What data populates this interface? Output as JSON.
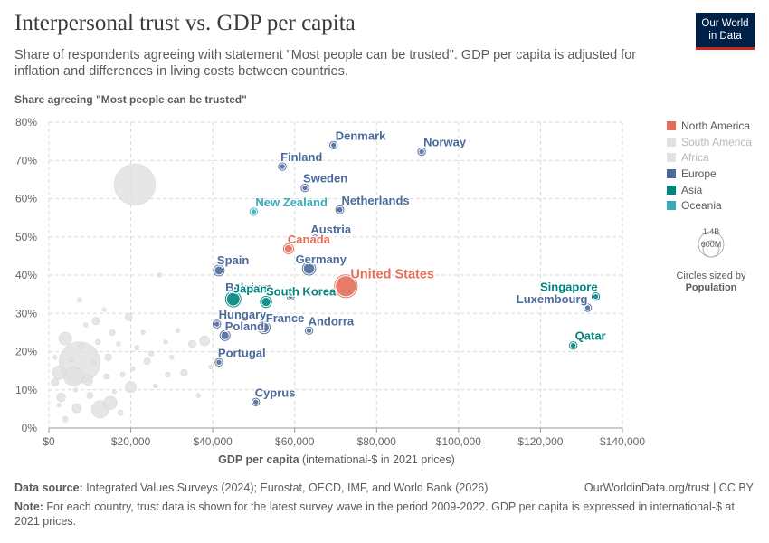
{
  "header": {
    "title": "Interpersonal trust vs. GDP per capita",
    "subtitle": "Share of respondents agreeing with statement \"Most people can be trusted\". GDP per capita is adjusted for inflation and differences in living costs between countries.",
    "logo_line1": "Our World",
    "logo_line2": "in Data"
  },
  "legend": {
    "items": [
      {
        "label": "North America",
        "color": "#e56e5a",
        "faded": false
      },
      {
        "label": "South America",
        "color": "#e2e2e2",
        "faded": true
      },
      {
        "label": "Africa",
        "color": "#e2e2e2",
        "faded": true
      },
      {
        "label": "Europe",
        "color": "#4c6a9c",
        "faded": false
      },
      {
        "label": "Asia",
        "color": "#00847e",
        "faded": false
      },
      {
        "label": "Oceania",
        "color": "#38aaba",
        "faded": false
      }
    ],
    "size_big": "1.4B",
    "size_small": "600M",
    "size_title": "Circles sized by",
    "size_variable": "Population"
  },
  "footer": {
    "source_label": "Data source:",
    "source_text": " Integrated Values Surveys (2024); Eurostat, OECD, IMF, and World Bank (2026)",
    "url": "OurWorldinData.org/trust | CC BY",
    "note_label": "Note:",
    "note_text": " For each country, trust data is shown for the latest survey wave in the period 2009-2022. GDP per capita is expressed in international-$ at 2021 prices."
  },
  "chart_data": {
    "type": "scatter",
    "title": "Interpersonal trust vs. GDP per capita",
    "xlabel": "GDP per capita",
    "xlabel_unit": " (international-$ in 2021 prices)",
    "ylabel": "Share agreeing \"Most people can be trusted\"",
    "xlim": [
      0,
      140000
    ],
    "ylim": [
      0,
      80
    ],
    "x_ticks": [
      0,
      20000,
      40000,
      60000,
      80000,
      100000,
      120000,
      140000
    ],
    "x_tick_labels": [
      "$0",
      "$20,000",
      "$40,000",
      "$60,000",
      "$80,000",
      "$100,000",
      "$120,000",
      "$140,000"
    ],
    "y_ticks": [
      0,
      10,
      20,
      30,
      40,
      50,
      60,
      70,
      80
    ],
    "y_tick_labels": [
      "0%",
      "10%",
      "20%",
      "30%",
      "40%",
      "50%",
      "60%",
      "70%",
      "80%"
    ],
    "grid": true,
    "region_colors": {
      "North America": "#e56e5a",
      "Europe": "#4c6a9c",
      "Asia": "#00847e",
      "Oceania": "#38aaba",
      "Other": "#e2e2e2"
    },
    "labeled_points": [
      {
        "label": "Denmark",
        "x": 69500,
        "y": 74,
        "pop": 6,
        "region": "Europe"
      },
      {
        "label": "Norway",
        "x": 91000,
        "y": 72.3,
        "pop": 5,
        "region": "Europe"
      },
      {
        "label": "Finland",
        "x": 57000,
        "y": 68.4,
        "pop": 6,
        "region": "Europe"
      },
      {
        "label": "Sweden",
        "x": 62500,
        "y": 62.8,
        "pop": 10,
        "region": "Europe"
      },
      {
        "label": "Netherlands",
        "x": 71000,
        "y": 57.1,
        "pop": 18,
        "region": "Europe"
      },
      {
        "label": "New Zealand",
        "x": 50000,
        "y": 56.6,
        "pop": 5,
        "region": "Oceania"
      },
      {
        "label": "Austria",
        "x": 65000,
        "y": 49.5,
        "pop": 9,
        "region": "Europe"
      },
      {
        "label": "Canada",
        "x": 58500,
        "y": 46.9,
        "pop": 38,
        "region": "North America"
      },
      {
        "label": "Germany",
        "x": 63500,
        "y": 41.7,
        "pop": 83,
        "region": "Europe"
      },
      {
        "label": "Spain",
        "x": 41500,
        "y": 41.2,
        "pop": 47,
        "region": "Europe"
      },
      {
        "label": "United States",
        "x": 72500,
        "y": 37.1,
        "pop": 333,
        "region": "North America"
      },
      {
        "label": "Belgium",
        "x": 59000,
        "y": 34.5,
        "pop": 12,
        "region": "Europe"
      },
      {
        "label": "Japan",
        "x": 45000,
        "y": 33.7,
        "pop": 125,
        "region": "Asia"
      },
      {
        "label": "South Korea",
        "x": 53000,
        "y": 33.0,
        "pop": 52,
        "region": "Asia"
      },
      {
        "label": "Singapore",
        "x": 133500,
        "y": 34.4,
        "pop": 6,
        "region": "Asia"
      },
      {
        "label": "Luxembourg",
        "x": 131500,
        "y": 31.5,
        "pop": 1,
        "region": "Europe"
      },
      {
        "label": "Hungary",
        "x": 41000,
        "y": 27.2,
        "pop": 10,
        "region": "Europe"
      },
      {
        "label": "France",
        "x": 52500,
        "y": 26.3,
        "pop": 68,
        "region": "Europe"
      },
      {
        "label": "Andorra",
        "x": 63500,
        "y": 25.5,
        "pop": 1,
        "region": "Europe"
      },
      {
        "label": "Poland",
        "x": 43000,
        "y": 24.2,
        "pop": 38,
        "region": "Europe"
      },
      {
        "label": "Qatar",
        "x": 128000,
        "y": 21.6,
        "pop": 3,
        "region": "Asia"
      },
      {
        "label": "Portugal",
        "x": 41500,
        "y": 17.2,
        "pop": 10,
        "region": "Europe"
      },
      {
        "label": "Cyprus",
        "x": 50500,
        "y": 6.8,
        "pop": 1,
        "region": "Europe"
      }
    ],
    "unlabeled_points": [
      {
        "x": 21000,
        "y": 63.7,
        "pop": 1400,
        "region": "Other"
      },
      {
        "x": 7500,
        "y": 17.2,
        "pop": 1400,
        "region": "Other"
      },
      {
        "x": 12500,
        "y": 4.9,
        "pop": 215,
        "region": "Other"
      },
      {
        "x": 4000,
        "y": 23.4,
        "pop": 110,
        "region": "Other"
      },
      {
        "x": 15000,
        "y": 6.6,
        "pop": 120,
        "region": "Other"
      },
      {
        "x": 6000,
        "y": 13.5,
        "pop": 275,
        "region": "Other"
      },
      {
        "x": 2500,
        "y": 14.5,
        "pop": 120,
        "region": "Other"
      },
      {
        "x": 6800,
        "y": 5.2,
        "pop": 50,
        "region": "Other"
      },
      {
        "x": 20000,
        "y": 10.7,
        "pop": 80,
        "region": "Other"
      },
      {
        "x": 38000,
        "y": 22.8,
        "pop": 60,
        "region": "Other"
      },
      {
        "x": 9500,
        "y": 12.5,
        "pop": 60,
        "region": "Other"
      },
      {
        "x": 3000,
        "y": 8.0,
        "pop": 45,
        "region": "Other"
      },
      {
        "x": 1500,
        "y": 12.0,
        "pop": 30,
        "region": "Other"
      },
      {
        "x": 11500,
        "y": 28.0,
        "pop": 30,
        "region": "Other"
      },
      {
        "x": 14500,
        "y": 18.5,
        "pop": 25,
        "region": "Other"
      },
      {
        "x": 19500,
        "y": 29.0,
        "pop": 25,
        "region": "Other"
      },
      {
        "x": 7500,
        "y": 33.5,
        "pop": 8,
        "region": "Other"
      },
      {
        "x": 27000,
        "y": 40.0,
        "pop": 6,
        "region": "Other"
      },
      {
        "x": 15500,
        "y": 25.0,
        "pop": 15,
        "region": "Other"
      },
      {
        "x": 24000,
        "y": 17.5,
        "pop": 20,
        "region": "Other"
      },
      {
        "x": 10000,
        "y": 8.5,
        "pop": 18,
        "region": "Other"
      },
      {
        "x": 17500,
        "y": 4.0,
        "pop": 12,
        "region": "Other"
      },
      {
        "x": 4000,
        "y": 2.3,
        "pop": 12,
        "region": "Other"
      },
      {
        "x": 29000,
        "y": 14.0,
        "pop": 10,
        "region": "Other"
      },
      {
        "x": 33000,
        "y": 14.5,
        "pop": 22,
        "region": "Other"
      },
      {
        "x": 35000,
        "y": 22.0,
        "pop": 30,
        "region": "Other"
      },
      {
        "x": 25000,
        "y": 19.5,
        "pop": 10,
        "region": "Other"
      },
      {
        "x": 21500,
        "y": 21.0,
        "pop": 8,
        "region": "Other"
      },
      {
        "x": 8000,
        "y": 21.5,
        "pop": 10,
        "region": "Other"
      },
      {
        "x": 12000,
        "y": 22.5,
        "pop": 10,
        "region": "Other"
      },
      {
        "x": 14000,
        "y": 13.5,
        "pop": 12,
        "region": "Other"
      },
      {
        "x": 5500,
        "y": 18.0,
        "pop": 10,
        "region": "Other"
      },
      {
        "x": 18000,
        "y": 14.0,
        "pop": 8,
        "region": "Other"
      },
      {
        "x": 11000,
        "y": 17.0,
        "pop": 8,
        "region": "Other"
      },
      {
        "x": 26000,
        "y": 11.0,
        "pop": 6,
        "region": "Other"
      },
      {
        "x": 36500,
        "y": 8.5,
        "pop": 6,
        "region": "Other"
      },
      {
        "x": 30000,
        "y": 18.5,
        "pop": 6,
        "region": "Other"
      },
      {
        "x": 23000,
        "y": 25.0,
        "pop": 6,
        "region": "Other"
      },
      {
        "x": 17000,
        "y": 22.0,
        "pop": 6,
        "region": "Other"
      },
      {
        "x": 9000,
        "y": 27.0,
        "pop": 6,
        "region": "Other"
      },
      {
        "x": 13500,
        "y": 31.0,
        "pop": 5,
        "region": "Other"
      },
      {
        "x": 28500,
        "y": 22.5,
        "pop": 5,
        "region": "Other"
      },
      {
        "x": 31500,
        "y": 25.5,
        "pop": 5,
        "region": "Other"
      },
      {
        "x": 16000,
        "y": 9.5,
        "pop": 5,
        "region": "Other"
      },
      {
        "x": 6500,
        "y": 10.0,
        "pop": 5,
        "region": "Other"
      },
      {
        "x": 2500,
        "y": 6.0,
        "pop": 5,
        "region": "Other"
      },
      {
        "x": 1500,
        "y": 18.5,
        "pop": 5,
        "region": "Other"
      },
      {
        "x": 20500,
        "y": 15.5,
        "pop": 5,
        "region": "Other"
      },
      {
        "x": 39500,
        "y": 16.0,
        "pop": 5,
        "region": "Other"
      }
    ]
  }
}
